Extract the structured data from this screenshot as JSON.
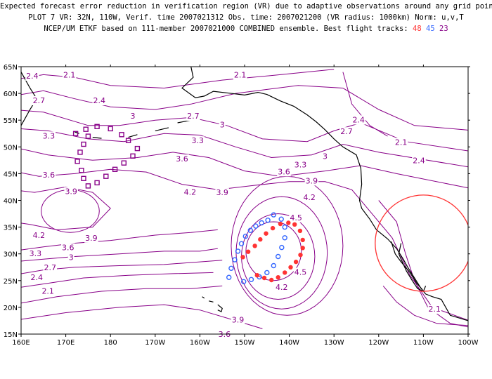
{
  "header": {
    "line1": "Expected forecast error reduction in verification region (VR) due to adaptive observations around any grid point.",
    "line2": "PLOT 7 VR: 32N, 110W, Verif. time 2007021312 Obs. time: 2007021200 (VR radius: 1000km) Norm: u,v,T",
    "line3_prefix": "NCEP/UM ETKF based on 111-member 2007021000 COMBINED ensemble.  Best flight tracks:",
    "track_48": "48",
    "track_45": "45",
    "track_23": "23"
  },
  "colors": {
    "contour": "#880088",
    "track48": "#ff3333",
    "track45": "#3366ff",
    "track23": "#880088",
    "vr_circle": "#ff3333",
    "coast": "#000000"
  },
  "map": {
    "lon_range": [
      160,
      260
    ],
    "lat_range": [
      15,
      65
    ],
    "x_ticks": [
      "160E",
      "170E",
      "180",
      "170W",
      "160W",
      "150W",
      "140W",
      "130W",
      "120W",
      "110W",
      "100W"
    ],
    "y_ticks": [
      "15N",
      "20N",
      "25N",
      "30N",
      "35N",
      "40N",
      "45N",
      "50N",
      "55N",
      "60N",
      "65N"
    ],
    "verification_region": {
      "lat": 32,
      "lon": -110,
      "radius_km": 1000
    }
  },
  "contour_labels": [
    {
      "text": "2.4",
      "lon": 162.5,
      "lat": 63.3
    },
    {
      "text": "2.1",
      "lon": 170.8,
      "lat": 63.5
    },
    {
      "text": "2.1",
      "lon": 209,
      "lat": 63.5
    },
    {
      "text": "2.7",
      "lon": 164,
      "lat": 58.7
    },
    {
      "text": "2.4",
      "lon": 177.5,
      "lat": 58.7
    },
    {
      "text": "3",
      "lon": 185,
      "lat": 55.8
    },
    {
      "text": "2.7",
      "lon": 198.5,
      "lat": 55.8
    },
    {
      "text": "3",
      "lon": 205,
      "lat": 54.2
    },
    {
      "text": "3.3",
      "lon": 166.2,
      "lat": 52.1
    },
    {
      "text": "3.3",
      "lon": 199.5,
      "lat": 51.2
    },
    {
      "text": "3",
      "lon": 228,
      "lat": 48.3
    },
    {
      "text": "3.6",
      "lon": 196,
      "lat": 47.8
    },
    {
      "text": "3.3",
      "lon": 222.5,
      "lat": 46.7
    },
    {
      "text": "3.6",
      "lon": 218.8,
      "lat": 45.4
    },
    {
      "text": "3.6",
      "lon": 166.2,
      "lat": 44.8
    },
    {
      "text": "3.9",
      "lon": 171.2,
      "lat": 41.7
    },
    {
      "text": "4.2",
      "lon": 197.8,
      "lat": 41.6
    },
    {
      "text": "3.9",
      "lon": 205,
      "lat": 41.5
    },
    {
      "text": "3.9",
      "lon": 225,
      "lat": 43.7
    },
    {
      "text": "4.2",
      "lon": 224.5,
      "lat": 40.6
    },
    {
      "text": "4.5",
      "lon": 221.5,
      "lat": 36.8
    },
    {
      "text": "4.2",
      "lon": 164,
      "lat": 33.5
    },
    {
      "text": "3.9",
      "lon": 175.7,
      "lat": 33.0
    },
    {
      "text": "3.6",
      "lon": 170.5,
      "lat": 31.2
    },
    {
      "text": "3.3",
      "lon": 163.2,
      "lat": 30.1
    },
    {
      "text": "3",
      "lon": 171.2,
      "lat": 29.4
    },
    {
      "text": "2.7",
      "lon": 166.5,
      "lat": 27.5
    },
    {
      "text": "2.4",
      "lon": 163.5,
      "lat": 25.6
    },
    {
      "text": "2.1",
      "lon": 166,
      "lat": 23.1
    },
    {
      "text": "4.5",
      "lon": 222.5,
      "lat": 26.6
    },
    {
      "text": "4.2",
      "lon": 218.3,
      "lat": 23.8
    },
    {
      "text": "3.9",
      "lon": 208.5,
      "lat": 17.7
    },
    {
      "text": "3.6",
      "lon": 205.5,
      "lat": 15.0
    },
    {
      "text": "2.1",
      "lon": 252.5,
      "lat": 19.7
    },
    {
      "text": "2.4",
      "lon": 235.5,
      "lat": 55.1
    },
    {
      "text": "2.7",
      "lon": 232.8,
      "lat": 52.9
    },
    {
      "text": "2.1",
      "lon": 245,
      "lat": 50.9
    },
    {
      "text": "2.4",
      "lon": 249,
      "lat": 47.5
    }
  ],
  "tracks": {
    "track23": [
      [
        175,
        52
      ],
      [
        174,
        50.5
      ],
      [
        173.2,
        49
      ],
      [
        172.6,
        47.3
      ],
      [
        173.5,
        45.6
      ],
      [
        174,
        44.1
      ],
      [
        175,
        42.7
      ],
      [
        177,
        43.3
      ],
      [
        179,
        44.5
      ],
      [
        181,
        45.8
      ],
      [
        183,
        47
      ],
      [
        185,
        48.3
      ],
      [
        186,
        49.7
      ],
      [
        184,
        51.2
      ],
      [
        182.5,
        52.3
      ],
      [
        180,
        53.4
      ],
      [
        177,
        53.8
      ],
      [
        174.5,
        53.3
      ],
      [
        172.2,
        52.5
      ]
    ],
    "track45": [
      [
        206.5,
        25.6
      ],
      [
        207,
        27.3
      ],
      [
        207.8,
        28.9
      ],
      [
        208.5,
        30.5
      ],
      [
        209.3,
        31.9
      ],
      [
        210.2,
        33.3
      ],
      [
        211.3,
        34.4
      ],
      [
        212.5,
        35.2
      ],
      [
        213.8,
        35.8
      ],
      [
        215.2,
        36.3
      ],
      [
        216.5,
        37.3
      ],
      [
        218.2,
        36.5
      ],
      [
        219,
        35
      ],
      [
        219,
        33
      ],
      [
        218.3,
        31.2
      ],
      [
        217.5,
        29.5
      ],
      [
        216.5,
        27.8
      ],
      [
        215,
        26.5
      ],
      [
        213.3,
        25.7
      ],
      [
        211.5,
        25.2
      ],
      [
        209.8,
        24.8
      ]
    ],
    "track48": [
      [
        209.6,
        29.4
      ],
      [
        210.8,
        30.4
      ],
      [
        212.3,
        31.5
      ],
      [
        213.5,
        32.7
      ],
      [
        214.8,
        33.8
      ],
      [
        216.3,
        34.8
      ],
      [
        218,
        35.6
      ],
      [
        219.8,
        35.8
      ],
      [
        221.2,
        35.5
      ],
      [
        222.4,
        34.3
      ],
      [
        223,
        32.6
      ],
      [
        223,
        31.1
      ],
      [
        222.5,
        29.8
      ],
      [
        221.5,
        28.5
      ],
      [
        220.3,
        27.5
      ],
      [
        219,
        26.5
      ],
      [
        217.5,
        25.6
      ],
      [
        216,
        25.1
      ],
      [
        214.4,
        25.5
      ],
      [
        212.8,
        26
      ]
    ]
  }
}
